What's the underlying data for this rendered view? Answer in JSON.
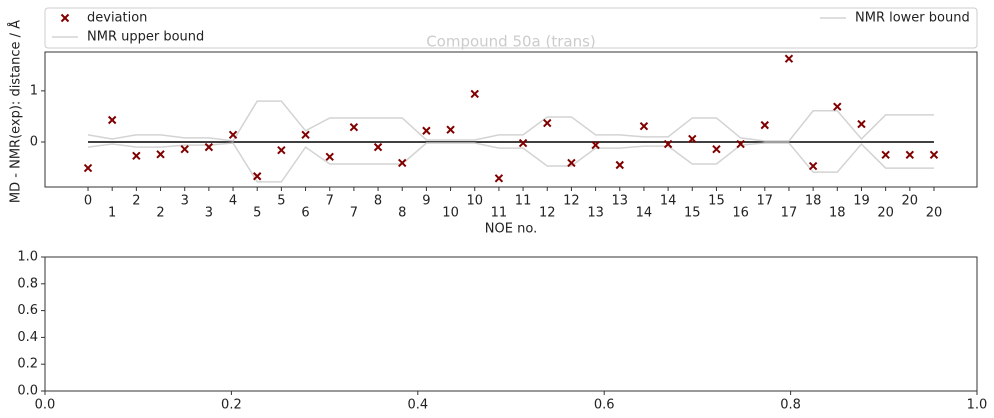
{
  "chart_data": [
    {
      "type": "scatter",
      "title": "Compound 50a (trans)",
      "x_label": "NOE no.",
      "y_label": "MD - NMR(exp): distance / Å",
      "x": [
        0,
        1,
        2,
        3,
        4,
        5,
        6,
        7,
        8,
        9,
        10,
        11,
        12,
        13,
        14,
        15,
        16,
        17,
        18,
        19,
        20,
        21,
        22,
        23,
        24,
        25,
        26,
        27,
        28,
        29,
        30,
        31,
        32,
        33,
        34,
        35
      ],
      "series": [
        {
          "name": "deviation",
          "kind": "marker",
          "marker": "x",
          "color": "#800000",
          "values": [
            -0.51,
            0.43,
            -0.27,
            -0.24,
            -0.14,
            -0.1,
            0.14,
            -0.67,
            -0.16,
            0.14,
            -0.29,
            0.29,
            -0.1,
            -0.41,
            0.22,
            0.24,
            0.94,
            -0.71,
            -0.02,
            0.37,
            -0.41,
            -0.06,
            -0.45,
            0.31,
            -0.04,
            0.06,
            -0.14,
            -0.04,
            0.33,
            1.63,
            -0.47,
            0.69,
            0.35,
            -0.25,
            -0.25,
            -0.25
          ]
        },
        {
          "name": "NMR upper bound",
          "kind": "line",
          "color": "#d3d3d3",
          "values": [
            0.14,
            0.06,
            0.14,
            0.14,
            0.08,
            0.08,
            0.02,
            0.8,
            0.8,
            0.22,
            0.47,
            0.47,
            0.47,
            0.47,
            0.04,
            0.04,
            0.04,
            0.14,
            0.14,
            0.49,
            0.49,
            0.14,
            0.14,
            0.1,
            0.1,
            0.47,
            0.47,
            0.08,
            0.02,
            0.02,
            0.61,
            0.61,
            0.06,
            0.53,
            0.53,
            0.53
          ]
        },
        {
          "name": "NMR lower bound",
          "kind": "line",
          "color": "#d3d3d3",
          "values": [
            -0.1,
            -0.04,
            -0.1,
            -0.1,
            -0.06,
            -0.06,
            -0.02,
            -0.78,
            -0.78,
            -0.1,
            -0.43,
            -0.43,
            -0.43,
            -0.43,
            -0.02,
            -0.02,
            -0.02,
            -0.12,
            -0.12,
            -0.47,
            -0.47,
            -0.12,
            -0.12,
            -0.08,
            -0.08,
            -0.43,
            -0.43,
            -0.06,
            -0.02,
            -0.02,
            -0.59,
            -0.59,
            -0.04,
            -0.51,
            -0.51,
            -0.51
          ]
        }
      ],
      "hlines": [
        0
      ],
      "xlim": [
        -1.78,
        36.78
      ],
      "ylim": [
        -0.88,
        1.76
      ],
      "xticks": [
        {
          "value": 0,
          "label": "0"
        },
        {
          "value": 1,
          "label": "1"
        },
        {
          "value": 2,
          "label": "2"
        },
        {
          "value": 3,
          "label": "2"
        },
        {
          "value": 4,
          "label": "3"
        },
        {
          "value": 5,
          "label": "3"
        },
        {
          "value": 6,
          "label": "4"
        },
        {
          "value": 7,
          "label": "5"
        },
        {
          "value": 8,
          "label": "5"
        },
        {
          "value": 9,
          "label": "6"
        },
        {
          "value": 10,
          "label": "7"
        },
        {
          "value": 11,
          "label": "7"
        },
        {
          "value": 12,
          "label": "8"
        },
        {
          "value": 13,
          "label": "8"
        },
        {
          "value": 14,
          "label": "9"
        },
        {
          "value": 15,
          "label": "10"
        },
        {
          "value": 16,
          "label": "10"
        },
        {
          "value": 17,
          "label": "11"
        },
        {
          "value": 18,
          "label": "11"
        },
        {
          "value": 19,
          "label": "12"
        },
        {
          "value": 20,
          "label": "12"
        },
        {
          "value": 21,
          "label": "13"
        },
        {
          "value": 22,
          "label": "13"
        },
        {
          "value": 23,
          "label": "14"
        },
        {
          "value": 24,
          "label": "14"
        },
        {
          "value": 25,
          "label": "15"
        },
        {
          "value": 26,
          "label": "15"
        },
        {
          "value": 27,
          "label": "16"
        },
        {
          "value": 28,
          "label": "17"
        },
        {
          "value": 29,
          "label": "17"
        },
        {
          "value": 30,
          "label": "18"
        },
        {
          "value": 31,
          "label": "18"
        },
        {
          "value": 32,
          "label": "19"
        },
        {
          "value": 33,
          "label": "20"
        },
        {
          "value": 34,
          "label": "20"
        },
        {
          "value": 35,
          "label": "20"
        }
      ],
      "yticks": [
        0,
        1
      ],
      "legend": "top"
    },
    {
      "type": "scatter",
      "xlim": [
        0,
        1
      ],
      "ylim": [
        0,
        1
      ],
      "xticks": [
        {
          "value": 0,
          "label": "0.0"
        },
        {
          "value": 0.2,
          "label": "0.2"
        },
        {
          "value": 0.4,
          "label": "0.4"
        },
        {
          "value": 0.6,
          "label": "0.6"
        },
        {
          "value": 0.8,
          "label": "0.8"
        },
        {
          "value": 1,
          "label": "1.0"
        }
      ],
      "yticks": [
        {
          "value": 0,
          "label": "0.0"
        },
        {
          "value": 0.2,
          "label": "0.2"
        },
        {
          "value": 0.4,
          "label": "0.4"
        },
        {
          "value": 0.6,
          "label": "0.6"
        },
        {
          "value": 0.8,
          "label": "0.8"
        },
        {
          "value": 1,
          "label": "1.0"
        }
      ]
    }
  ]
}
